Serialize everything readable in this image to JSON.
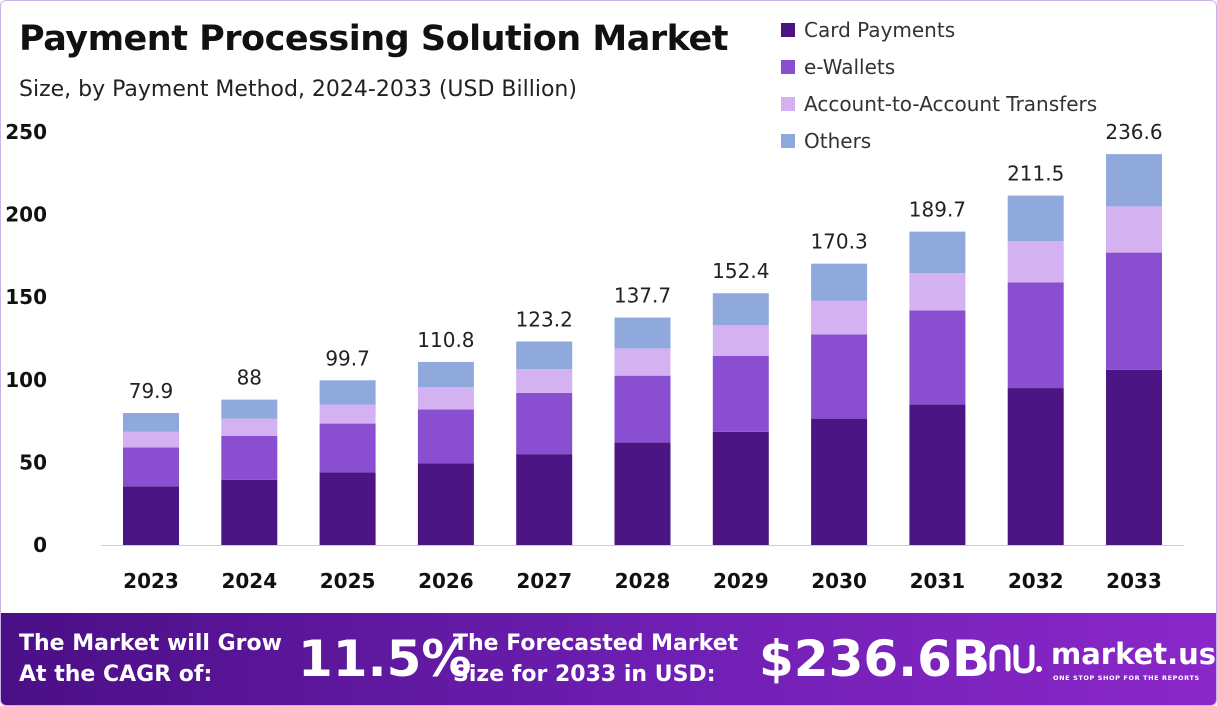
{
  "chart_data": {
    "type": "bar",
    "stacked": true,
    "title": "Payment Processing Solution Market",
    "subtitle": "Size, by Payment Method, 2024-2033 (USD Billion)",
    "categories": [
      "2023",
      "2024",
      "2025",
      "2026",
      "2027",
      "2028",
      "2029",
      "2030",
      "2031",
      "2032",
      "2033"
    ],
    "totals": [
      "79.9",
      "88",
      "99.7",
      "110.8",
      "123.2",
      "137.7",
      "152.4",
      "170.3",
      "189.7",
      "211.5",
      "236.6"
    ],
    "series": [
      {
        "name": "Card Payments",
        "color": "#4b1584",
        "values": [
          35.5,
          39.5,
          44,
          49.5,
          55,
          62,
          68.5,
          76.5,
          85,
          95,
          106
        ]
      },
      {
        "name": "e-Wallets",
        "color": "#8a4fd0",
        "values": [
          23.5,
          26.5,
          29.5,
          32.5,
          37,
          40.5,
          46,
          51,
          57,
          64,
          71
        ]
      },
      {
        "name": "Account-to-Account Transfers",
        "color": "#d4b1f0",
        "values": [
          9.5,
          10.5,
          11.5,
          13.5,
          14.5,
          16.5,
          18.5,
          20.5,
          22.5,
          25,
          28
        ]
      },
      {
        "name": "Others",
        "color": "#8fa9dc",
        "values": [
          11.4,
          11.5,
          14.7,
          15.3,
          16.7,
          18.7,
          19.4,
          22.3,
          25.2,
          27.5,
          31.6
        ]
      }
    ],
    "yticks": [
      0,
      50,
      100,
      150,
      200,
      250
    ],
    "ylim": [
      0,
      250
    ],
    "legend_position": "top-right",
    "grid": false
  },
  "footer": {
    "cagr_line1": "The Market will Grow",
    "cagr_line2": "At the CAGR of:",
    "cagr_value": "11.5%",
    "size_line1": "The Forecasted Market",
    "size_line2": "Size for 2033 in USD:",
    "size_value": "$236.6B",
    "brand_name": "market.us",
    "brand_tagline": "ONE STOP SHOP FOR THE REPORTS",
    "brand_icon": "market-us-logo-icon"
  }
}
